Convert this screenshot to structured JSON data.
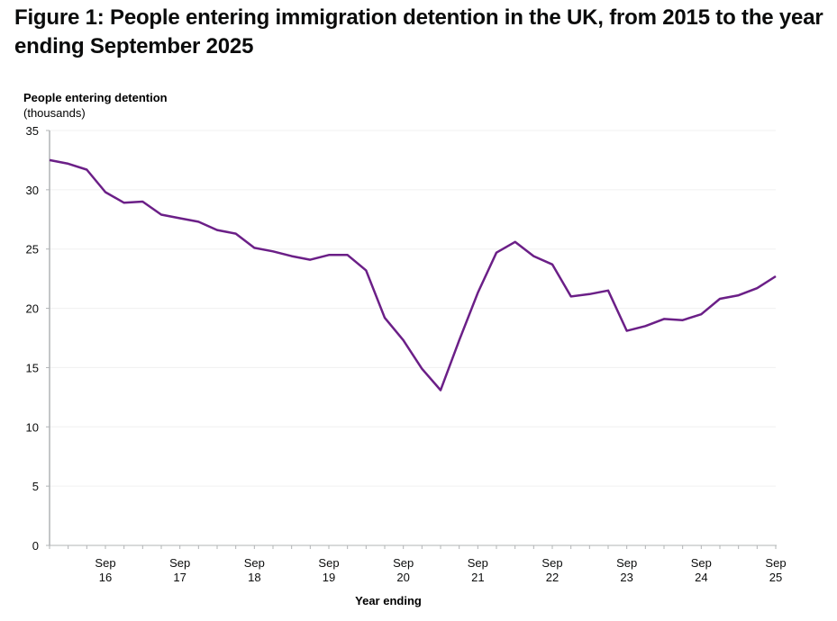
{
  "title": "Figure 1: People entering immigration detention in the UK, from 2015 to the year ending September 2025",
  "chart_data": {
    "type": "line",
    "title": "Figure 1: People entering immigration detention in the UK, from 2015 to the year ending September 2025",
    "ylabel": "People entering detention",
    "ylabel_sub": "(thousands)",
    "xlabel": "Year ending",
    "ylim": [
      0,
      35
    ],
    "yticks": [
      0,
      5,
      10,
      15,
      20,
      25,
      30,
      35
    ],
    "xtick_labels": [
      [
        "Sep",
        "16"
      ],
      [
        "Sep",
        "17"
      ],
      [
        "Sep",
        "18"
      ],
      [
        "Sep",
        "19"
      ],
      [
        "Sep",
        "20"
      ],
      [
        "Sep",
        "21"
      ],
      [
        "Sep",
        "22"
      ],
      [
        "Sep",
        "23"
      ],
      [
        "Sep",
        "24"
      ],
      [
        "Sep",
        "25"
      ]
    ],
    "grid": true,
    "color": "#6b1f87",
    "x": [
      "Dec 15",
      "Mar 16",
      "Jun 16",
      "Sep 16",
      "Dec 16",
      "Mar 17",
      "Jun 17",
      "Sep 17",
      "Dec 17",
      "Mar 18",
      "Jun 18",
      "Sep 18",
      "Dec 18",
      "Mar 19",
      "Jun 19",
      "Sep 19",
      "Dec 19",
      "Mar 20",
      "Jun 20",
      "Sep 20",
      "Dec 20",
      "Mar 21",
      "Jun 21",
      "Sep 21",
      "Dec 21",
      "Mar 22",
      "Jun 22",
      "Sep 22",
      "Dec 22",
      "Mar 23",
      "Jun 23",
      "Sep 23",
      "Dec 23",
      "Mar 24",
      "Jun 24",
      "Sep 24",
      "Dec 24",
      "Mar 25",
      "Jun 25",
      "Sep 25"
    ],
    "series": [
      {
        "name": "People entering detention",
        "values": [
          32.5,
          32.2,
          31.7,
          29.8,
          28.9,
          29.0,
          27.9,
          27.6,
          27.3,
          26.6,
          26.3,
          25.1,
          24.8,
          24.4,
          24.1,
          24.5,
          24.5,
          23.2,
          19.2,
          17.3,
          14.9,
          13.1,
          17.3,
          21.3,
          24.7,
          25.6,
          24.4,
          23.7,
          21.0,
          21.2,
          21.5,
          18.1,
          18.5,
          19.1,
          19.0,
          19.5,
          20.8,
          21.1,
          21.7,
          22.7
        ]
      }
    ]
  }
}
